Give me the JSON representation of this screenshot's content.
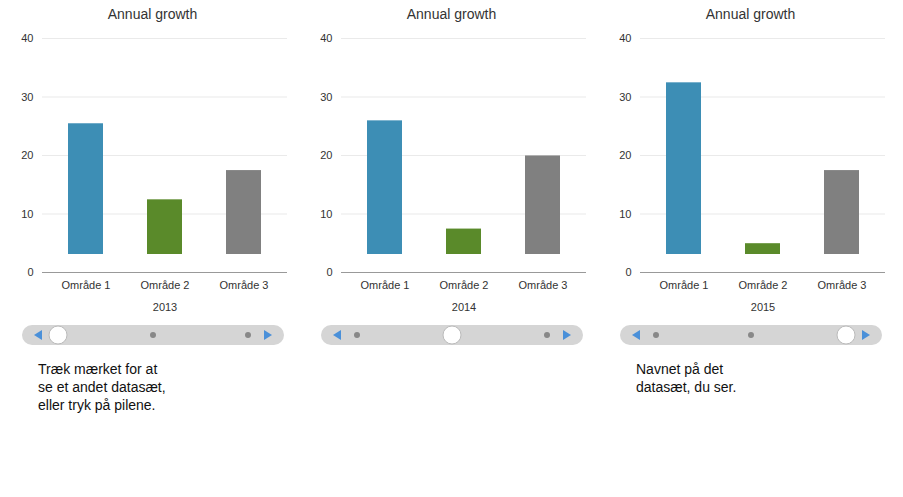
{
  "chart_data": [
    {
      "type": "bar",
      "title": "Annual growth",
      "xlabel": "2013",
      "categories": [
        "Område 1",
        "Område 2",
        "Område 3"
      ],
      "values": [
        28.5,
        15.5,
        20.5
      ],
      "colors": [
        "#3d8eb5",
        "#5a8a2a",
        "#808080"
      ],
      "ylim": [
        0,
        40
      ],
      "yticks": [
        0,
        10,
        20,
        30,
        40
      ],
      "grid": true,
      "annotations": [
        "Træk mærket for at\nse et andet datasæt,\neller tryk på pilene."
      ]
    },
    {
      "type": "bar",
      "title": "Annual growth",
      "xlabel": "2014",
      "categories": [
        "Område 1",
        "Område 2",
        "Område 3"
      ],
      "values": [
        29.0,
        10.5,
        23.0
      ],
      "colors": [
        "#3d8eb5",
        "#5a8a2a",
        "#808080"
      ],
      "ylim": [
        0,
        40
      ],
      "yticks": [
        0,
        10,
        20,
        30,
        40
      ],
      "grid": true
    },
    {
      "type": "bar",
      "title": "Annual growth",
      "xlabel": "2015",
      "categories": [
        "Område 1",
        "Område 2",
        "Område 3"
      ],
      "values": [
        35.5,
        8.0,
        20.5
      ],
      "colors": [
        "#3d8eb5",
        "#5a8a2a",
        "#808080"
      ],
      "ylim": [
        0,
        40
      ],
      "yticks": [
        0,
        10,
        20,
        30,
        40
      ],
      "grid": true,
      "annotations": [
        "Navnet på det\ndatasæt, du ser."
      ]
    }
  ]
}
